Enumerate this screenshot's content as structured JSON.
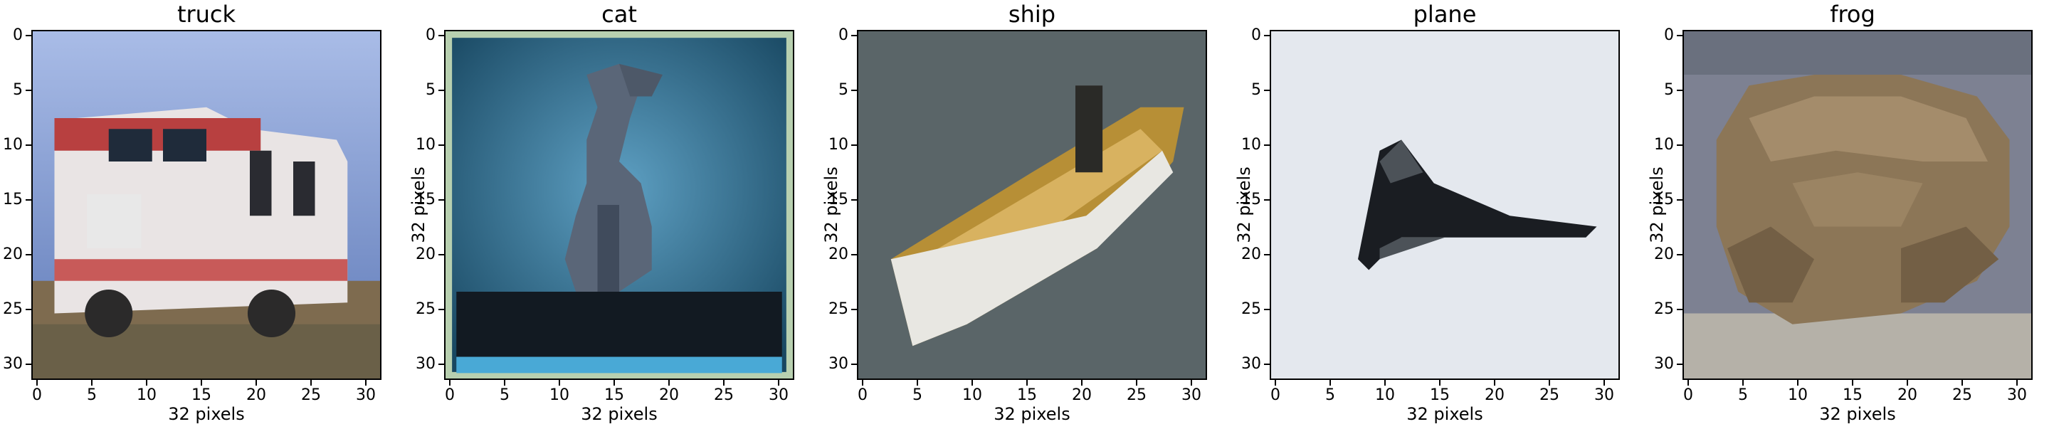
{
  "figure": {
    "panels": [
      {
        "title": "truck",
        "xlabel": "32 pixels",
        "ylabel": "",
        "image_description": "fire truck",
        "icon": "truck-icon"
      },
      {
        "title": "cat",
        "xlabel": "32 pixels",
        "ylabel": "32 pixels",
        "image_description": "cat silhouette on blue background",
        "icon": "cat-icon"
      },
      {
        "title": "ship",
        "xlabel": "32 pixels",
        "ylabel": "32 pixels",
        "image_description": "small boat on water",
        "icon": "boat-icon"
      },
      {
        "title": "plane",
        "xlabel": "32 pixels",
        "ylabel": "32 pixels",
        "image_description": "dark plane against pale sky",
        "icon": "plane-icon"
      },
      {
        "title": "frog",
        "xlabel": "32 pixels",
        "ylabel": "32 pixels",
        "image_description": "brown frog",
        "icon": "frog-icon"
      }
    ],
    "axis_ticks": [
      "0",
      "5",
      "10",
      "15",
      "20",
      "25",
      "30"
    ]
  }
}
